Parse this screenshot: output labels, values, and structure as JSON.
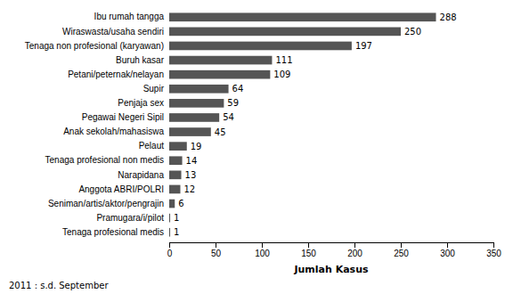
{
  "chart_data": {
    "type": "bar",
    "orientation": "horizontal",
    "categories": [
      "Tenaga profesional medis",
      "Pramugara/i/pilot",
      "Seniman/artis/aktor/pengrajin",
      "Anggota ABRI/POLRI",
      "Narapidana",
      "Tenaga profesional non medis",
      "Pelaut",
      "Anak sekolah/mahasiswa",
      "Pegawai Negeri Sipil",
      "Penjaja sex",
      "Supir",
      "Petani/peternak/nelayan",
      "Buruh kasar",
      "Tenaga non profesional (karyawan)",
      "Wiraswasta/usaha sendiri",
      "Ibu rumah tangga"
    ],
    "values": [
      1,
      1,
      6,
      12,
      13,
      14,
      19,
      45,
      54,
      59,
      64,
      109,
      111,
      197,
      250,
      288
    ],
    "color": "#555555",
    "xlabel": "Jumlah Kasus",
    "xlim": [
      0,
      350
    ],
    "xticks": [
      0,
      50,
      100,
      150,
      200,
      250,
      300,
      350
    ],
    "data_labels": true,
    "grid": false,
    "annotation": "2011 : s.d. September"
  }
}
